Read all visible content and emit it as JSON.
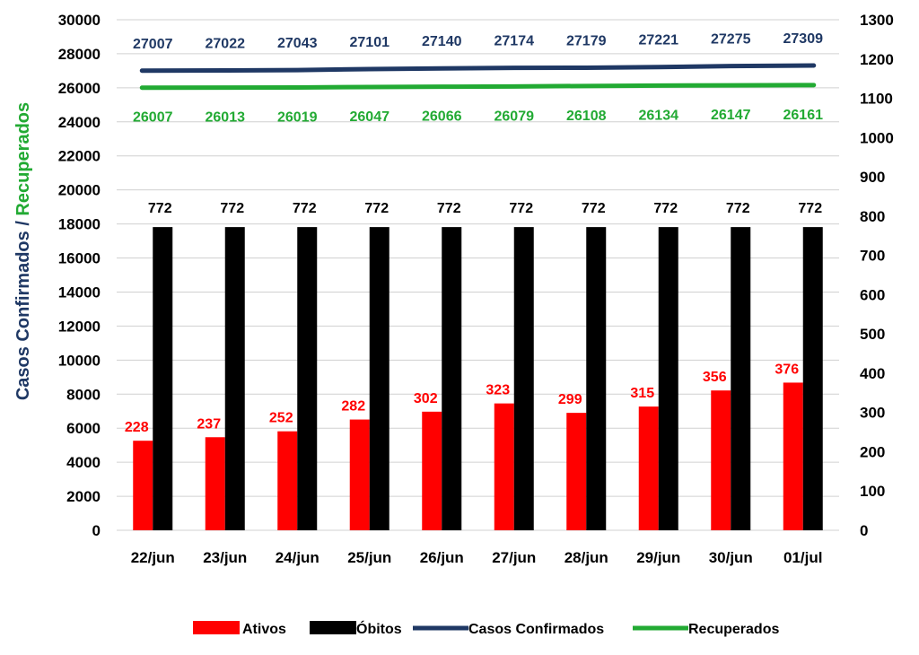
{
  "chart_data": {
    "type": "bar",
    "categories": [
      "22/jun",
      "23/jun",
      "24/jun",
      "25/jun",
      "26/jun",
      "27/jun",
      "28/jun",
      "29/jun",
      "30/jun",
      "01/jul"
    ],
    "ylabel_part1": "Casos Confirmados",
    "ylabel_separator": " / ",
    "ylabel_part2": "Recuperados",
    "y_left": {
      "min": 0,
      "max": 30000,
      "step": 2000
    },
    "y_right": {
      "min": 0,
      "max": 1300,
      "step": 100
    },
    "grid": true,
    "legend_position": "bottom",
    "series": [
      {
        "name": "Ativos",
        "kind": "bar",
        "axis": "right",
        "color": "#ff0000",
        "label_color": "#ff0000",
        "values": [
          228,
          237,
          252,
          282,
          302,
          323,
          299,
          315,
          356,
          376
        ]
      },
      {
        "name": "Óbitos",
        "kind": "bar",
        "axis": "right",
        "color": "#000000",
        "label_color": "#000000",
        "values": [
          772,
          772,
          772,
          772,
          772,
          772,
          772,
          772,
          772,
          772
        ]
      },
      {
        "name": "Casos Confirmados",
        "kind": "line",
        "axis": "left",
        "color": "#1f3864",
        "label_color": "#1f3864",
        "values": [
          27007,
          27022,
          27043,
          27101,
          27140,
          27174,
          27179,
          27221,
          27275,
          27309
        ]
      },
      {
        "name": "Recuperados",
        "kind": "line",
        "axis": "left",
        "color": "#22aa33",
        "label_color": "#22aa33",
        "values": [
          26007,
          26013,
          26019,
          26047,
          26066,
          26079,
          26108,
          26134,
          26147,
          26161
        ]
      }
    ]
  }
}
